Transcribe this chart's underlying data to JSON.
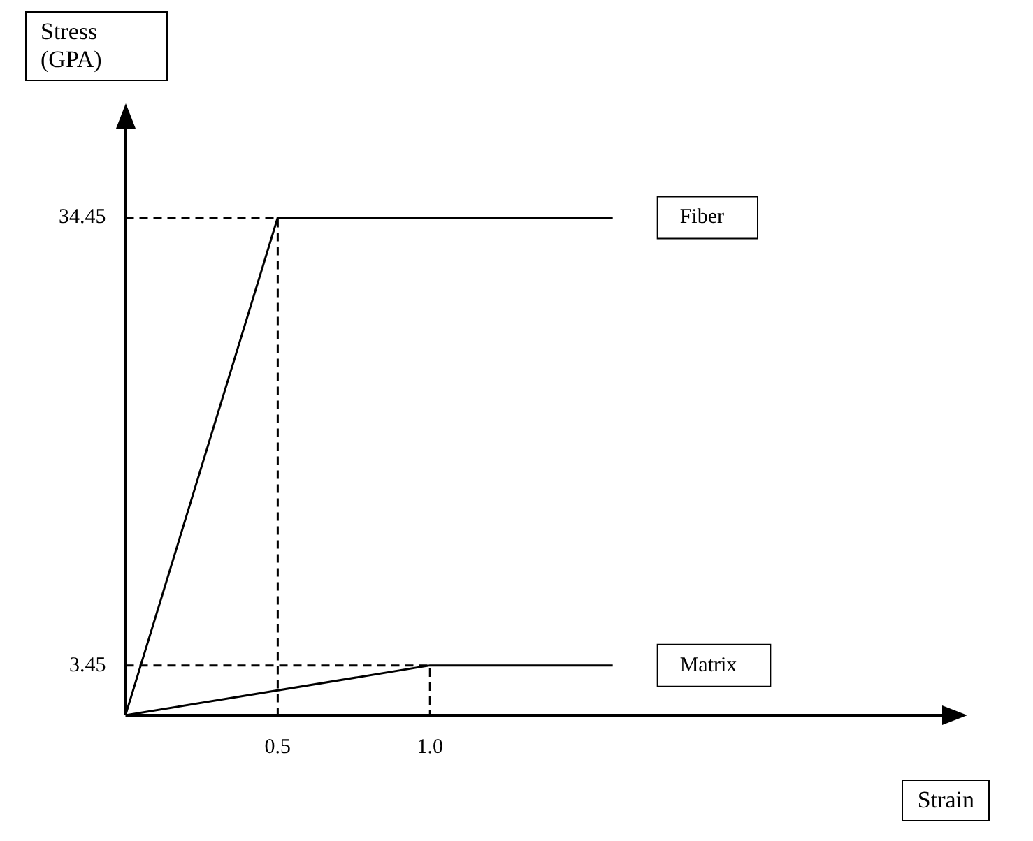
{
  "chart_data": {
    "type": "line",
    "xlabel": "Strain",
    "ylabel": "Stress (GPA)",
    "xlim": [
      0,
      2.7
    ],
    "ylim": [
      0,
      41
    ],
    "xticks": [
      0.5,
      {
        "value": 1,
        "label": "1.0"
      }
    ],
    "yticks": [
      3.45,
      34.45
    ],
    "grid": false,
    "legend": false,
    "marker": "none",
    "series": [
      {
        "name": "Fiber",
        "color": "#000000",
        "line_style": "solid",
        "x": [
          0,
          0.5,
          1.6
        ],
        "values": [
          0,
          34.45,
          34.45
        ]
      },
      {
        "name": "Matrix",
        "color": "#000000",
        "line_style": "solid",
        "x": [
          0,
          1.0,
          1.6
        ],
        "values": [
          0,
          3.45,
          3.45
        ]
      },
      {
        "color": "#000000",
        "line_style": "dashed",
        "x": [
          0,
          0.5,
          0.5
        ],
        "values": [
          34.45,
          34.45,
          0
        ]
      },
      {
        "color": "#000000",
        "line_style": "dashed",
        "x": [
          0,
          1.0,
          1.0
        ],
        "values": [
          3.45,
          3.45,
          0
        ]
      }
    ]
  }
}
